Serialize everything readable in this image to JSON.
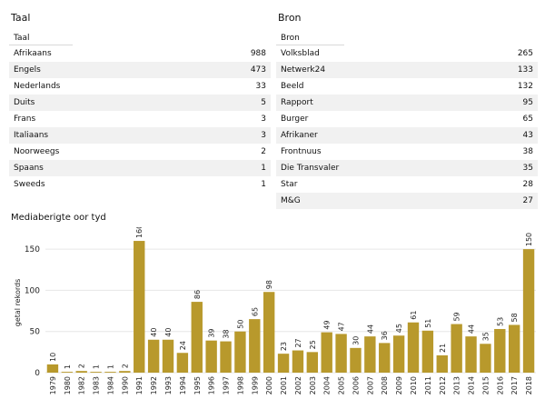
{
  "taal": {
    "title": "Taal",
    "header": "Taal",
    "rows": [
      {
        "label": "Afrikaans",
        "value": "988"
      },
      {
        "label": "Engels",
        "value": "473"
      },
      {
        "label": "Nederlands",
        "value": "33"
      },
      {
        "label": "Duits",
        "value": "5"
      },
      {
        "label": "Frans",
        "value": "3"
      },
      {
        "label": "Italiaans",
        "value": "3"
      },
      {
        "label": "Noorweegs",
        "value": "2"
      },
      {
        "label": "Spaans",
        "value": "1"
      },
      {
        "label": "Sweeds",
        "value": "1"
      }
    ]
  },
  "bron": {
    "title": "Bron",
    "header": "Bron",
    "rows": [
      {
        "label": "Volksblad",
        "value": "265"
      },
      {
        "label": "Netwerk24",
        "value": "133"
      },
      {
        "label": "Beeld",
        "value": "132"
      },
      {
        "label": "Rapport",
        "value": "95"
      },
      {
        "label": "Burger",
        "value": "65"
      },
      {
        "label": "Afrikaner",
        "value": "43"
      },
      {
        "label": "Frontnuus",
        "value": "38"
      },
      {
        "label": "Die Transvaler",
        "value": "35"
      },
      {
        "label": "Star",
        "value": "28"
      },
      {
        "label": "M&G",
        "value": "27"
      }
    ]
  },
  "chart_data": {
    "type": "bar",
    "title": "Mediaberigte oor tyd",
    "ylabel": "getal rekords",
    "xlabel": "",
    "categories": [
      "1979",
      "1980",
      "1982",
      "1983",
      "1984",
      "1990",
      "1991",
      "1992",
      "1993",
      "1994",
      "1995",
      "1996",
      "1997",
      "1998",
      "1999",
      "2000",
      "2001",
      "2002",
      "2003",
      "2004",
      "2005",
      "2006",
      "2007",
      "2008",
      "2009",
      "2010",
      "2011",
      "2012",
      "2013",
      "2014",
      "2015",
      "2016",
      "2017",
      "2018"
    ],
    "values": [
      10,
      1,
      2,
      1,
      1,
      2,
      160,
      40,
      40,
      24,
      86,
      39,
      38,
      50,
      65,
      98,
      23,
      27,
      25,
      49,
      47,
      30,
      44,
      36,
      45,
      61,
      51,
      21,
      59,
      44,
      35,
      53,
      58,
      150
    ],
    "ylim": [
      0,
      170
    ],
    "yticks": [
      0,
      50,
      100,
      150
    ],
    "bar_color": "#b8992c",
    "grid": true
  }
}
